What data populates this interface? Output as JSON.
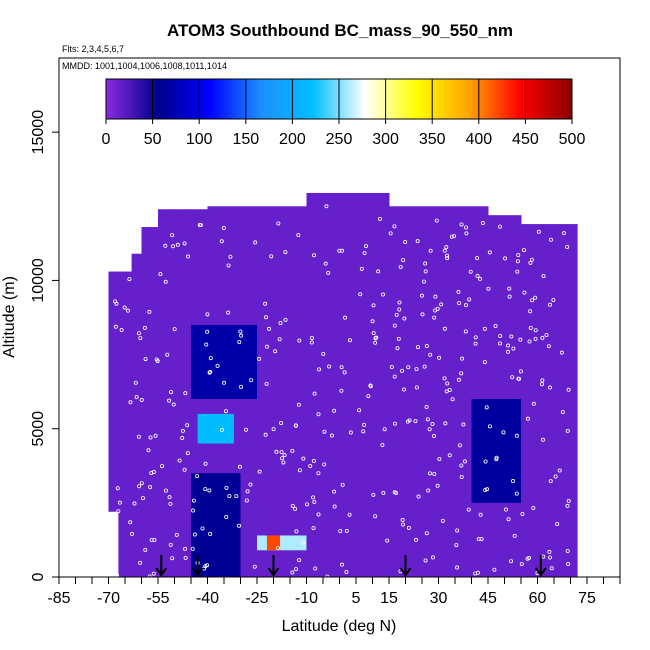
{
  "chart_data": {
    "type": "heatmap",
    "title": "ATOM3 Southbound BC_mass_90_550_nm",
    "flights_label": "Flts: 2,3,4,5,6,7",
    "mmdd_label": "MMDD: 1001,1004,1006,1008,1011,1014",
    "xlabel": "Latitude (deg N)",
    "ylabel": "Altitude (m)",
    "xlim": [
      -85,
      85
    ],
    "ylim": [
      0,
      17500
    ],
    "x_ticks": [
      -85,
      -70,
      -55,
      -40,
      -25,
      -10,
      5,
      15,
      30,
      45,
      60,
      75
    ],
    "y_ticks": [
      0,
      5000,
      10000,
      15000
    ],
    "colorbar": {
      "ticks": [
        0,
        50,
        100,
        150,
        200,
        250,
        300,
        350,
        400,
        450,
        500
      ],
      "colors": [
        "#8a2be2",
        "#00008b",
        "#0000ff",
        "#1e90ff",
        "#00bfff",
        "#ffffff",
        "#ffff00",
        "#ffa500",
        "#ff0000",
        "#8b0000"
      ],
      "range": [
        0,
        500
      ]
    },
    "background_value": 15,
    "profile_latitudes": [
      -54,
      -43,
      -20,
      20,
      61
    ],
    "enhanced_regions": [
      {
        "lat": [
          -43,
          -32
        ],
        "alt": [
          4500,
          5500
        ],
        "value": 220
      },
      {
        "lat": [
          -25,
          -10
        ],
        "alt": [
          900,
          1400
        ],
        "value": 260
      },
      {
        "lat": [
          -22,
          -18
        ],
        "alt": [
          900,
          1400
        ],
        "value": 420
      },
      {
        "lat": [
          -45,
          -25
        ],
        "alt": [
          6000,
          8500
        ],
        "value": 70
      },
      {
        "lat": [
          -45,
          -30
        ],
        "alt": [
          0,
          3500
        ],
        "value": 60
      },
      {
        "lat": [
          40,
          55
        ],
        "alt": [
          2500,
          6000
        ],
        "value": 65
      }
    ]
  }
}
